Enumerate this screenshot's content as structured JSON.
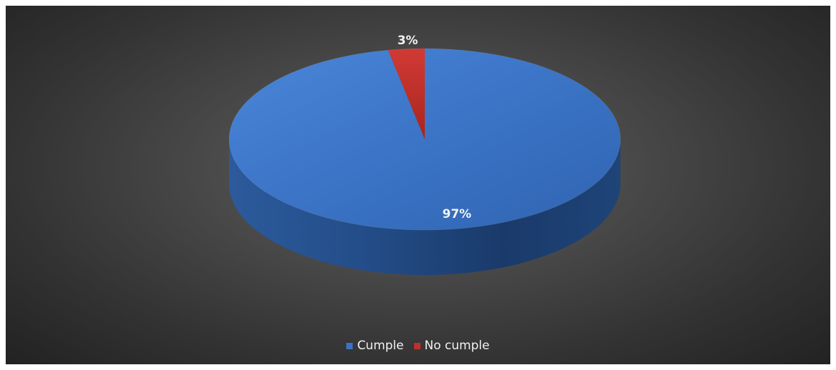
{
  "chart_data": {
    "type": "pie",
    "style": "3d",
    "categories": [
      "Cumple",
      "No cumple"
    ],
    "values": [
      97,
      3
    ],
    "data_labels": [
      "97%",
      "3%"
    ],
    "colors": [
      "#3a72c4",
      "#c0302c"
    ],
    "legend_position": "bottom"
  },
  "legend": {
    "items": [
      {
        "label": "Cumple",
        "color": "#3a72c4"
      },
      {
        "label": "No cumple",
        "color": "#c0302c"
      }
    ]
  },
  "theme": {
    "background": "#3c3c3c",
    "label_color": "#f2f2f2"
  }
}
